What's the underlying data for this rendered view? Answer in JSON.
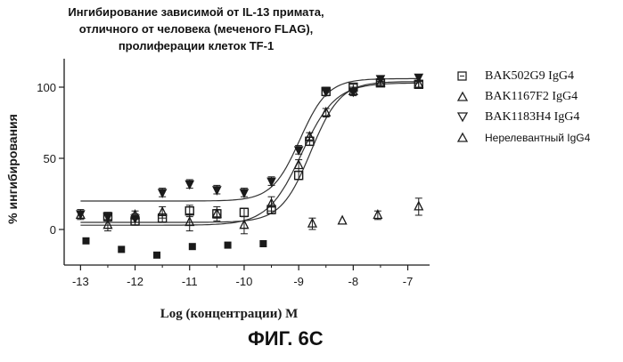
{
  "chart_data": {
    "type": "scatter",
    "title_lines": [
      "Ингибирование зависимой от IL-13 примата,",
      "отличного от человека  (меченого FLAG),",
      "пролиферации клеток TF-1"
    ],
    "xlabel": "Log (концентрации) M",
    "ylabel": "% ингибирования",
    "xlim": [
      -13.3,
      -6.6
    ],
    "ylim": [
      -25,
      120
    ],
    "xticks": [
      -13,
      -12,
      -11,
      -10,
      -9,
      -8,
      -7
    ],
    "yticks": [
      0,
      50,
      100
    ],
    "grid": false,
    "legend_position": "right",
    "series": [
      {
        "name": "BAK502G9 IgG4",
        "marker": "square",
        "x": [
          -12.5,
          -12.0,
          -11.5,
          -11.0,
          -10.5,
          -10.0,
          -9.5,
          -9.0,
          -8.8,
          -8.5,
          -8.0,
          -7.5,
          -6.8
        ],
        "y": [
          9,
          6,
          8,
          13,
          11,
          12,
          14,
          38,
          62,
          97,
          100,
          103,
          102
        ],
        "yerr": [
          3,
          3,
          3,
          4,
          3,
          3,
          3,
          3,
          3,
          3,
          2,
          2,
          2
        ],
        "fit": {
          "bottom": 5,
          "top": 104,
          "logEC50": -8.78,
          "hill": 1.6
        }
      },
      {
        "name": "BAK1167F2 IgG4",
        "marker": "triangle",
        "x": [
          -13.0,
          -12.5,
          -12.0,
          -11.5,
          -11.0,
          -10.5,
          -10.0,
          -9.5,
          -9.0,
          -8.8,
          -8.5,
          -8.0,
          -7.5,
          -6.8
        ],
        "y": [
          10,
          3,
          10,
          12,
          5,
          11,
          3,
          18,
          45,
          65,
          82,
          97,
          103,
          102
        ],
        "yerr": [
          3,
          4,
          3,
          4,
          6,
          5,
          6,
          5,
          4,
          3,
          3,
          3,
          2,
          2
        ],
        "fit": {
          "bottom": 3,
          "top": 103,
          "logEC50": -8.95,
          "hill": 1.4
        }
      },
      {
        "name": "BAK1183H4 IgG4",
        "marker": "triangle-down",
        "x": [
          -13.0,
          -12.5,
          -12.0,
          -11.5,
          -11.0,
          -10.5,
          -10.0,
          -9.5,
          -9.0,
          -8.5,
          -8.0,
          -7.5,
          -6.8
        ],
        "y": [
          11,
          9,
          8,
          26,
          32,
          28,
          26,
          34,
          56,
          97,
          97,
          106,
          107
        ],
        "yerr": [
          3,
          3,
          3,
          3,
          3,
          3,
          3,
          3,
          3,
          3,
          2,
          2,
          2
        ],
        "fit": {
          "bottom": 20,
          "top": 106,
          "logEC50": -8.98,
          "hill": 1.7
        }
      },
      {
        "name": "Нерелевантный IgG4",
        "marker": "triangle-open",
        "x": [
          -12.9,
          -12.25,
          -11.6,
          -10.95,
          -10.3,
          -9.65,
          -8.75,
          -8.2,
          -7.55,
          -6.8
        ],
        "y": [
          -8,
          -14,
          -18,
          -12,
          -11,
          -10,
          4,
          6,
          10,
          16
        ],
        "yerr": [
          0,
          0,
          0,
          0,
          0,
          0,
          4,
          0,
          3,
          6
        ]
      }
    ]
  },
  "figure_label": "ФИГ. 6С"
}
